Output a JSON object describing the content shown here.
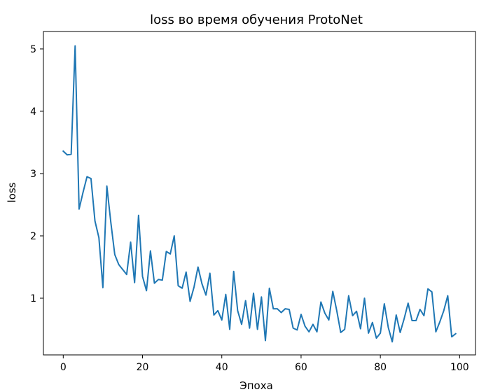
{
  "chart_data": {
    "type": "line",
    "title": "loss во время обучения ProtoNet",
    "xlabel": "Эпоха",
    "ylabel": "loss",
    "xlim": [
      -5,
      104
    ],
    "ylim": [
      0.09,
      5.28
    ],
    "xticks": [
      0,
      20,
      40,
      60,
      80,
      100
    ],
    "yticks": [
      1,
      2,
      3,
      4,
      5
    ],
    "grid": false,
    "line_color": "#1f77b4",
    "series": [
      {
        "x": [
          0,
          1,
          2,
          3,
          4,
          5,
          6,
          7,
          8,
          9,
          10,
          11,
          12,
          13,
          14,
          15,
          16,
          17,
          18,
          19,
          20,
          21,
          22,
          23,
          24,
          25,
          26,
          27,
          28,
          29,
          30,
          31,
          32,
          33,
          34,
          35,
          36,
          37,
          38,
          39,
          40,
          41,
          42,
          43,
          44,
          45,
          46,
          47,
          48,
          49,
          50,
          51,
          52,
          53,
          54,
          55,
          56,
          57,
          58,
          59,
          60,
          61,
          62,
          63,
          64,
          65,
          66,
          67,
          68,
          69,
          70,
          71,
          72,
          73,
          74,
          75,
          76,
          77,
          78,
          79,
          80,
          81,
          82,
          83,
          84,
          85,
          86,
          87,
          88,
          89,
          90,
          91,
          92,
          93,
          94,
          95,
          96,
          97,
          98,
          99
        ],
        "values": [
          3.36,
          3.3,
          3.31,
          5.05,
          2.43,
          2.7,
          2.95,
          2.92,
          2.24,
          1.97,
          1.17,
          2.8,
          2.22,
          1.7,
          1.54,
          1.46,
          1.38,
          1.9,
          1.25,
          2.33,
          1.35,
          1.12,
          1.76,
          1.24,
          1.3,
          1.29,
          1.75,
          1.71,
          2.0,
          1.2,
          1.16,
          1.42,
          0.95,
          1.18,
          1.5,
          1.23,
          1.05,
          1.4,
          0.73,
          0.8,
          0.65,
          1.06,
          0.5,
          1.43,
          0.8,
          0.58,
          0.96,
          0.52,
          1.08,
          0.5,
          1.02,
          0.32,
          1.16,
          0.83,
          0.83,
          0.77,
          0.83,
          0.82,
          0.52,
          0.49,
          0.74,
          0.55,
          0.46,
          0.58,
          0.46,
          0.94,
          0.76,
          0.65,
          1.11,
          0.8,
          0.45,
          0.5,
          1.04,
          0.72,
          0.79,
          0.51,
          1.0,
          0.44,
          0.61,
          0.36,
          0.44,
          0.91,
          0.53,
          0.3,
          0.73,
          0.45,
          0.67,
          0.92,
          0.64,
          0.64,
          0.82,
          0.72,
          1.15,
          1.1,
          0.46,
          0.62,
          0.8,
          1.04,
          0.38,
          0.43
        ]
      }
    ]
  }
}
